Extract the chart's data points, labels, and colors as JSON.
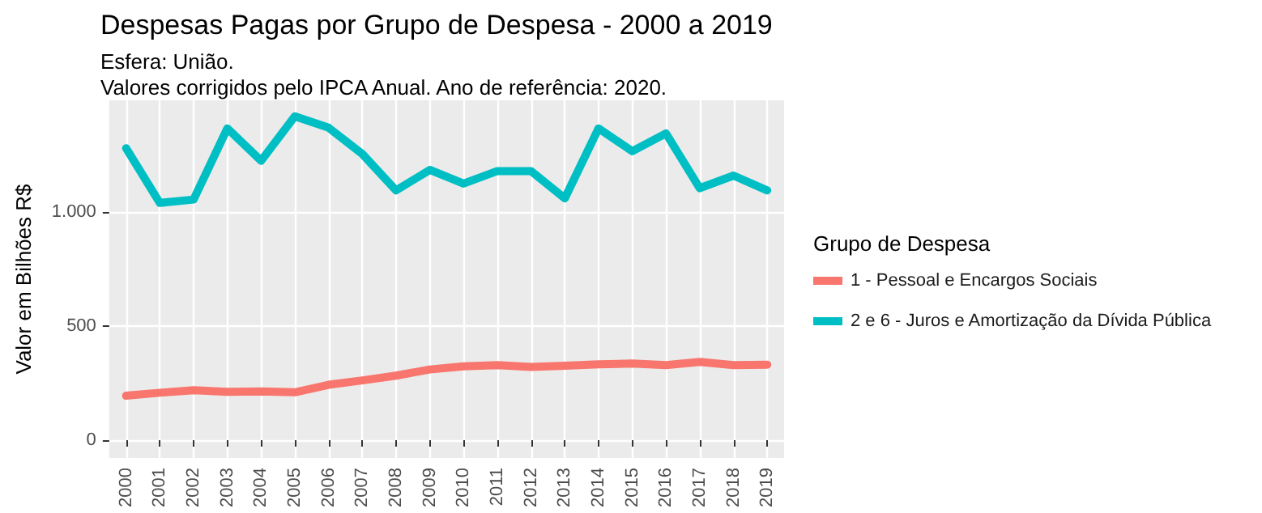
{
  "chart_data": {
    "type": "line",
    "title": "Despesas Pagas por Grupo de Despesa - 2000 a 2019",
    "subtitle": "Esfera: União.\nValores corrigidos pelo IPCA Anual. Ano de referência: 2020.",
    "ylabel": "Valor em Bilhões R$",
    "legend_title": "Grupo de Despesa",
    "categories": [
      "2000",
      "2001",
      "2002",
      "2003",
      "2004",
      "2005",
      "2006",
      "2007",
      "2008",
      "2009",
      "2010",
      "2011",
      "2012",
      "2013",
      "2014",
      "2015",
      "2016",
      "2017",
      "2018",
      "2019"
    ],
    "series": [
      {
        "name": "1 - Pessoal e Encargos Sociais",
        "color": "#f8766d",
        "values": [
          195,
          208,
          219,
          212,
          214,
          210,
          243,
          262,
          283,
          310,
          324,
          329,
          321,
          326,
          333,
          336,
          329,
          343,
          329,
          331
        ]
      },
      {
        "name": "2 e 6 - Juros e Amortização da Dívida Pública",
        "color": "#00bfc4",
        "values": [
          1280,
          1040,
          1055,
          1367,
          1225,
          1420,
          1370,
          1255,
          1095,
          1185,
          1125,
          1180,
          1180,
          1060,
          1367,
          1267,
          1345,
          1105,
          1160,
          1095
        ]
      }
    ],
    "ylim": [
      -78,
      1490
    ],
    "yticks": [
      0,
      500,
      {
        "value": 1000,
        "label": "1.000"
      }
    ],
    "grid": true,
    "legend": "right",
    "marker": "none",
    "line_style": "solid"
  }
}
